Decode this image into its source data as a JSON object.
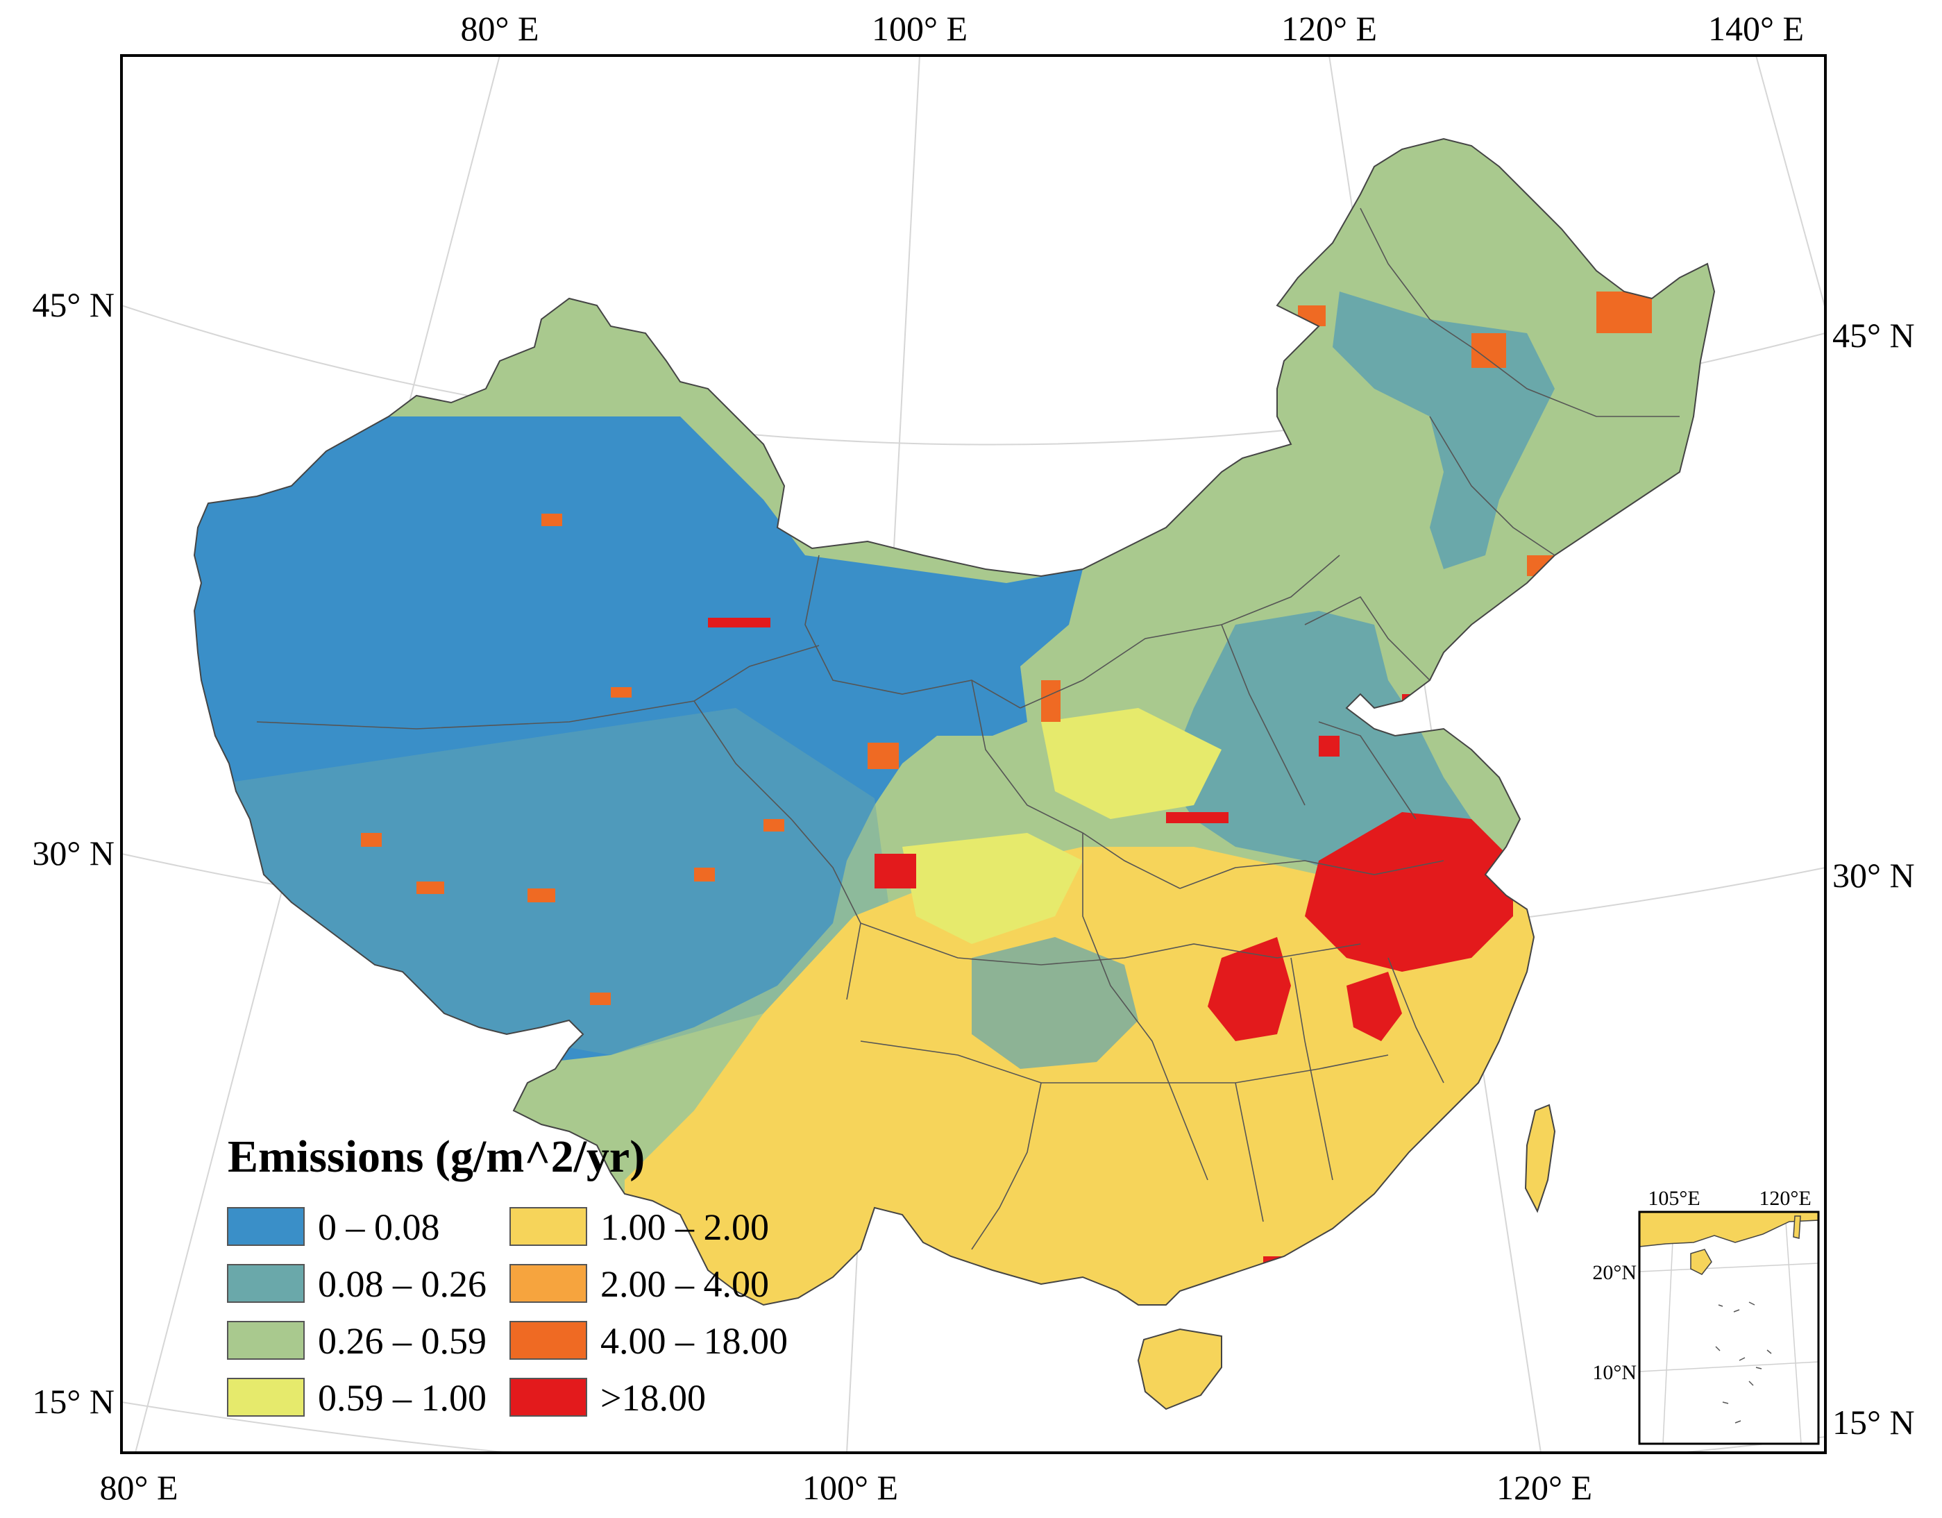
{
  "map": {
    "top_axis_labels": [
      "80° E",
      "100° E",
      "120° E",
      "140° E"
    ],
    "bottom_axis_labels": [
      "80° E",
      "100° E",
      "120° E"
    ],
    "left_axis_labels": [
      "45° N",
      "30° N",
      "15° N"
    ],
    "right_axis_labels": [
      "45° N",
      "30° N",
      "15° N"
    ]
  },
  "legend": {
    "title": "Emissions (g/m^2/yr)",
    "classes": [
      {
        "label": "0 – 0.08",
        "color": "#3a8fc8"
      },
      {
        "label": "0.08 – 0.26",
        "color": "#6aa8aa"
      },
      {
        "label": "0.26 – 0.59",
        "color": "#a9c98e"
      },
      {
        "label": "0.59 – 1.00",
        "color": "#e6ea6c"
      },
      {
        "label": "1.00 – 2.00",
        "color": "#f6d45a"
      },
      {
        "label": "2.00 – 4.00",
        "color": "#f6a43e"
      },
      {
        "label": "4.00 – 18.00",
        "color": "#ef6a23"
      },
      {
        "label": ">18.00",
        "color": "#e31a1c"
      }
    ]
  },
  "inset": {
    "top_labels": [
      "105°E",
      "120°E"
    ],
    "left_labels": [
      "20°N",
      "10°N"
    ]
  }
}
